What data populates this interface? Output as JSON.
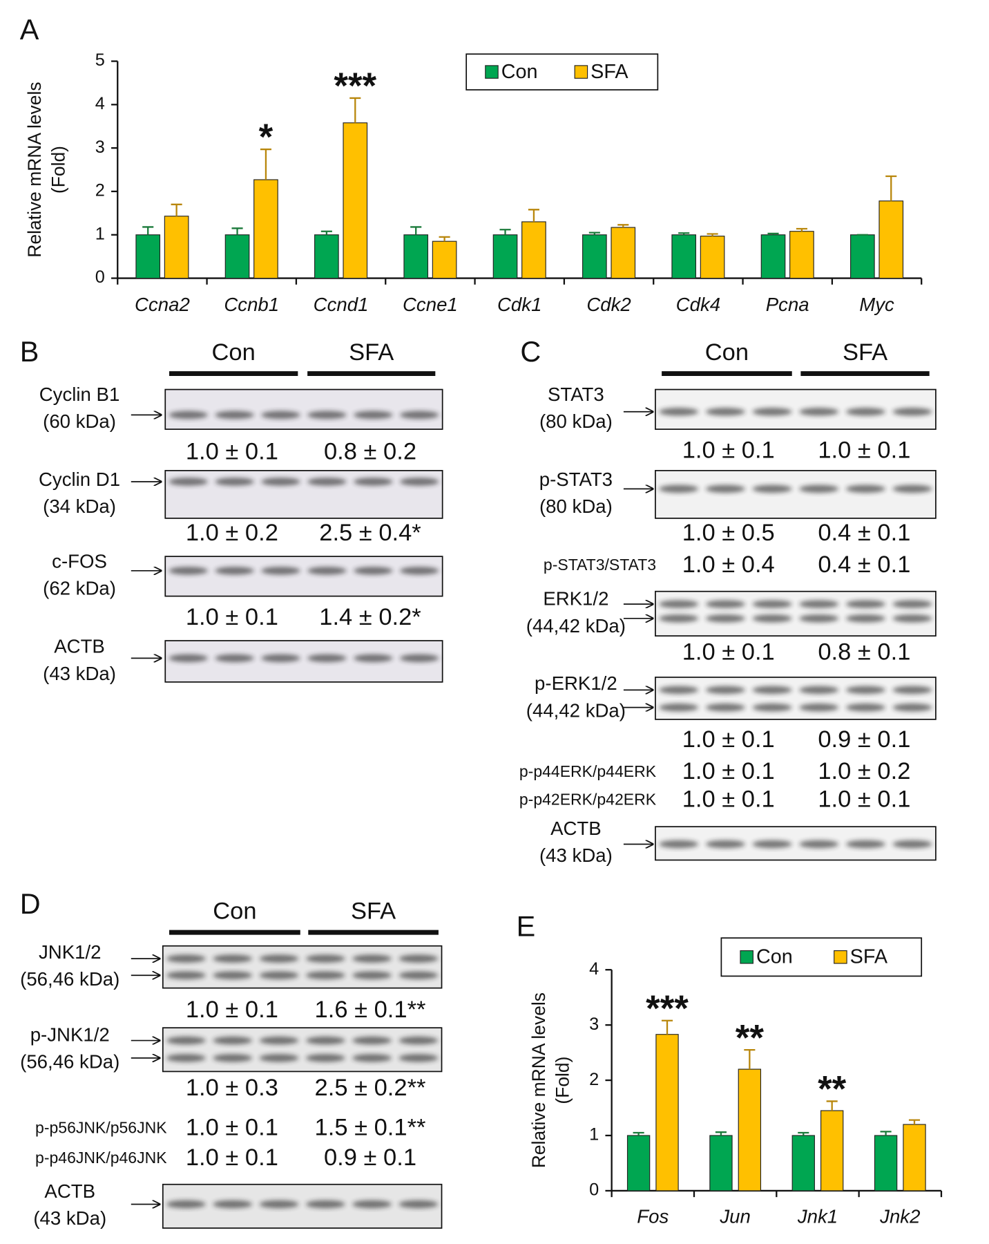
{
  "chart_data": [
    {
      "type": "bar",
      "panel": "A",
      "ylabel": "Relative mRNA levels",
      "ylabel2": "(Fold)",
      "categories": [
        "Ccna2",
        "Ccnb1",
        "Ccnd1",
        "Ccne1",
        "Cdk1",
        "Cdk2",
        "Cdk4",
        "Pcna",
        "Myc"
      ],
      "series": [
        {
          "name": "Con",
          "color": "#00a651",
          "values": [
            1,
            1,
            1,
            1,
            1,
            1,
            1,
            1,
            1
          ],
          "errors": [
            0.18,
            0.15,
            0.08,
            0.18,
            0.12,
            0.05,
            0.04,
            0.03,
            0
          ]
        },
        {
          "name": "SFA",
          "color": "#ffc000",
          "values": [
            1.43,
            2.27,
            3.58,
            0.85,
            1.3,
            1.17,
            0.97,
            1.08,
            1.78
          ],
          "errors": [
            0.27,
            0.7,
            0.57,
            0.1,
            0.28,
            0.06,
            0.05,
            0.06,
            0.57
          ]
        }
      ],
      "annotations": [
        null,
        "*",
        "***",
        null,
        null,
        null,
        null,
        null,
        null
      ],
      "ylim": [
        0,
        5
      ],
      "yticks": [
        0,
        1,
        2,
        3,
        4,
        5
      ],
      "legend": "top-right"
    },
    {
      "type": "bar",
      "panel": "E",
      "ylabel": "Relative mRNA levels",
      "ylabel2": "(Fold)",
      "categories": [
        "Fos",
        "Jun",
        "Jnk1",
        "Jnk2"
      ],
      "series": [
        {
          "name": "Con",
          "color": "#00a651",
          "values": [
            1,
            1,
            1,
            1
          ],
          "errors": [
            0.05,
            0.06,
            0.05,
            0.07
          ]
        },
        {
          "name": "SFA",
          "color": "#ffc000",
          "values": [
            2.83,
            2.2,
            1.45,
            1.2
          ],
          "errors": [
            0.25,
            0.35,
            0.17,
            0.08
          ]
        }
      ],
      "annotations": [
        "***",
        "**",
        "**",
        null
      ],
      "ylim": [
        0,
        4
      ],
      "yticks": [
        0,
        1,
        2,
        3,
        4
      ],
      "legend": "top-right"
    }
  ],
  "blots": [
    {
      "panel": "B",
      "groups": [
        "Con",
        "SFA"
      ],
      "items": [
        {
          "name": "Cyclin B1",
          "kda": "(60 kDa)"
        },
        {
          "con": "1.0 ± 0.1",
          "sfa": "0.8 ± 0.2"
        },
        {
          "name": "Cyclin D1",
          "kda": "(34 kDa)"
        },
        {
          "con": "1.0 ± 0.2",
          "sfa": "2.5 ± 0.4*"
        },
        {
          "name": "c-FOS",
          "kda": "(62 kDa)"
        },
        {
          "con": "1.0 ± 0.1",
          "sfa": "1.4 ± 0.2*"
        },
        {
          "name": "ACTB",
          "kda": "(43 kDa)"
        }
      ]
    },
    {
      "panel": "C",
      "groups": [
        "Con",
        "SFA"
      ],
      "items": [
        {
          "name": "STAT3",
          "kda": "(80 kDa)"
        },
        {
          "con": "1.0 ± 0.1",
          "sfa": "1.0 ± 0.1"
        },
        {
          "name": "p-STAT3",
          "kda": "(80 kDa)"
        },
        {
          "con": "1.0 ± 0.5",
          "sfa": "0.4 ± 0.1"
        },
        {
          "label": "p-STAT3/STAT3",
          "con": "1.0 ± 0.4",
          "sfa": "0.4 ± 0.1"
        },
        {
          "name": "ERK1/2",
          "kda": "(44,42 kDa)"
        },
        {
          "con": "1.0 ± 0.1",
          "sfa": "0.8 ± 0.1"
        },
        {
          "name": "p-ERK1/2",
          "kda": "(44,42 kDa)"
        },
        {
          "con": "1.0 ± 0.1",
          "sfa": "0.9 ± 0.1"
        },
        {
          "label": "p-p44ERK/p44ERK",
          "con": "1.0 ± 0.1",
          "sfa": "1.0 ± 0.2"
        },
        {
          "label": "p-p42ERK/p42ERK",
          "con": "1.0 ± 0.1",
          "sfa": "1.0 ± 0.1"
        },
        {
          "name": "ACTB",
          "kda": "(43 kDa)"
        }
      ]
    },
    {
      "panel": "D",
      "groups": [
        "Con",
        "SFA"
      ],
      "items": [
        {
          "name": "JNK1/2",
          "kda": "(56,46 kDa)"
        },
        {
          "con": "1.0 ± 0.1",
          "sfa": "1.6 ± 0.1**"
        },
        {
          "name": "p-JNK1/2",
          "kda": "(56,46 kDa)"
        },
        {
          "con": "1.0 ± 0.3",
          "sfa": "2.5 ± 0.2**"
        },
        {
          "label": "p-p56JNK/p56JNK",
          "con": "1.0 ± 0.1",
          "sfa": "1.5 ± 0.1**"
        },
        {
          "label": "p-p46JNK/p46JNK",
          "con": "1.0 ± 0.1",
          "sfa": "0.9 ± 0.1"
        },
        {
          "name": "ACTB",
          "kda": "(43 kDa)"
        }
      ]
    }
  ]
}
